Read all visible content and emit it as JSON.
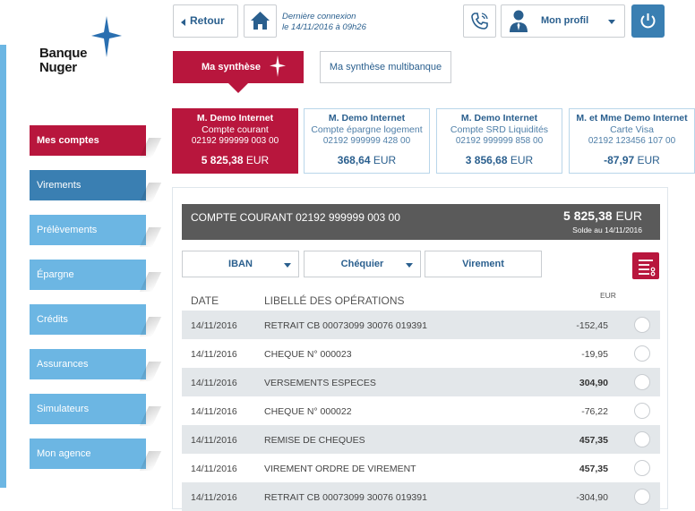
{
  "brand": {
    "name_line1": "Banque",
    "name_line2": "Nuger",
    "accent": "#b8163d",
    "blue": "#3a7fb2",
    "light_blue": "#6cb6e3"
  },
  "topbar": {
    "back_label": "Retour",
    "last_connection_line1": "Dernière connexion",
    "last_connection_line2": "le 14/11/2016 à 09h26",
    "profile_label": "Mon profil",
    "icons": [
      "home-icon",
      "phone-icon",
      "user-icon",
      "power-icon"
    ]
  },
  "menu": [
    {
      "label": "Mes comptes",
      "state": "active"
    },
    {
      "label": "Virements",
      "state": "dark"
    },
    {
      "label": "Prélèvements",
      "state": ""
    },
    {
      "label": "Épargne",
      "state": ""
    },
    {
      "label": "Crédits",
      "state": ""
    },
    {
      "label": "Assurances",
      "state": ""
    },
    {
      "label": "Simulateurs",
      "state": ""
    },
    {
      "label": "Mon agence",
      "state": ""
    }
  ],
  "tabs": {
    "synthese": "Ma synthèse",
    "multibanque": "Ma synthèse multibanque"
  },
  "cards": [
    {
      "owner": "M. Demo Internet",
      "type": "Compte courant",
      "number": "02192 999999 003 00",
      "balance": "5 825,38",
      "currency": "EUR"
    },
    {
      "owner": "M. Demo Internet",
      "type": "Compte épargne logement",
      "number": "02192 999999 428 00",
      "balance": "368,64",
      "currency": "EUR"
    },
    {
      "owner": "M. Demo Internet",
      "type": "Compte SRD Liquidités",
      "number": "02192 999999 858 00",
      "balance": "3 856,68",
      "currency": "EUR"
    },
    {
      "owner": "M. et Mme Demo Internet",
      "type": "Carte Visa",
      "number": "02192 123456 107 00",
      "balance": "-87,97",
      "currency": "EUR"
    }
  ],
  "account": {
    "title": "COMPTE COURANT 02192 999999 003 00",
    "balance": "5 825,38",
    "currency": "EUR",
    "solde_date": "Solde au 14/11/2016"
  },
  "actions": {
    "iban": "IBAN",
    "chequier": "Chéquier",
    "virement": "Virement"
  },
  "table": {
    "headers": {
      "date": "DATE",
      "label": "LIBELLÉ DES OPÉRATIONS",
      "currency": "EUR"
    },
    "rows": [
      {
        "date": "14/11/2016",
        "label": "RETRAIT CB 00073099 30076 019391",
        "amount": "-152,45",
        "positive": false
      },
      {
        "date": "14/11/2016",
        "label": "CHEQUE N° 000023",
        "amount": "-19,95",
        "positive": false
      },
      {
        "date": "14/11/2016",
        "label": "VERSEMENTS ESPECES",
        "amount": "304,90",
        "positive": true
      },
      {
        "date": "14/11/2016",
        "label": "CHEQUE N° 000022",
        "amount": "-76,22",
        "positive": false
      },
      {
        "date": "14/11/2016",
        "label": "REMISE DE CHEQUES",
        "amount": "457,35",
        "positive": true
      },
      {
        "date": "14/11/2016",
        "label": "VIREMENT ORDRE DE VIREMENT",
        "amount": "457,35",
        "positive": true
      },
      {
        "date": "14/11/2016",
        "label": "RETRAIT CB 00073099 30076 019391",
        "amount": "-304,90",
        "positive": false
      }
    ]
  }
}
